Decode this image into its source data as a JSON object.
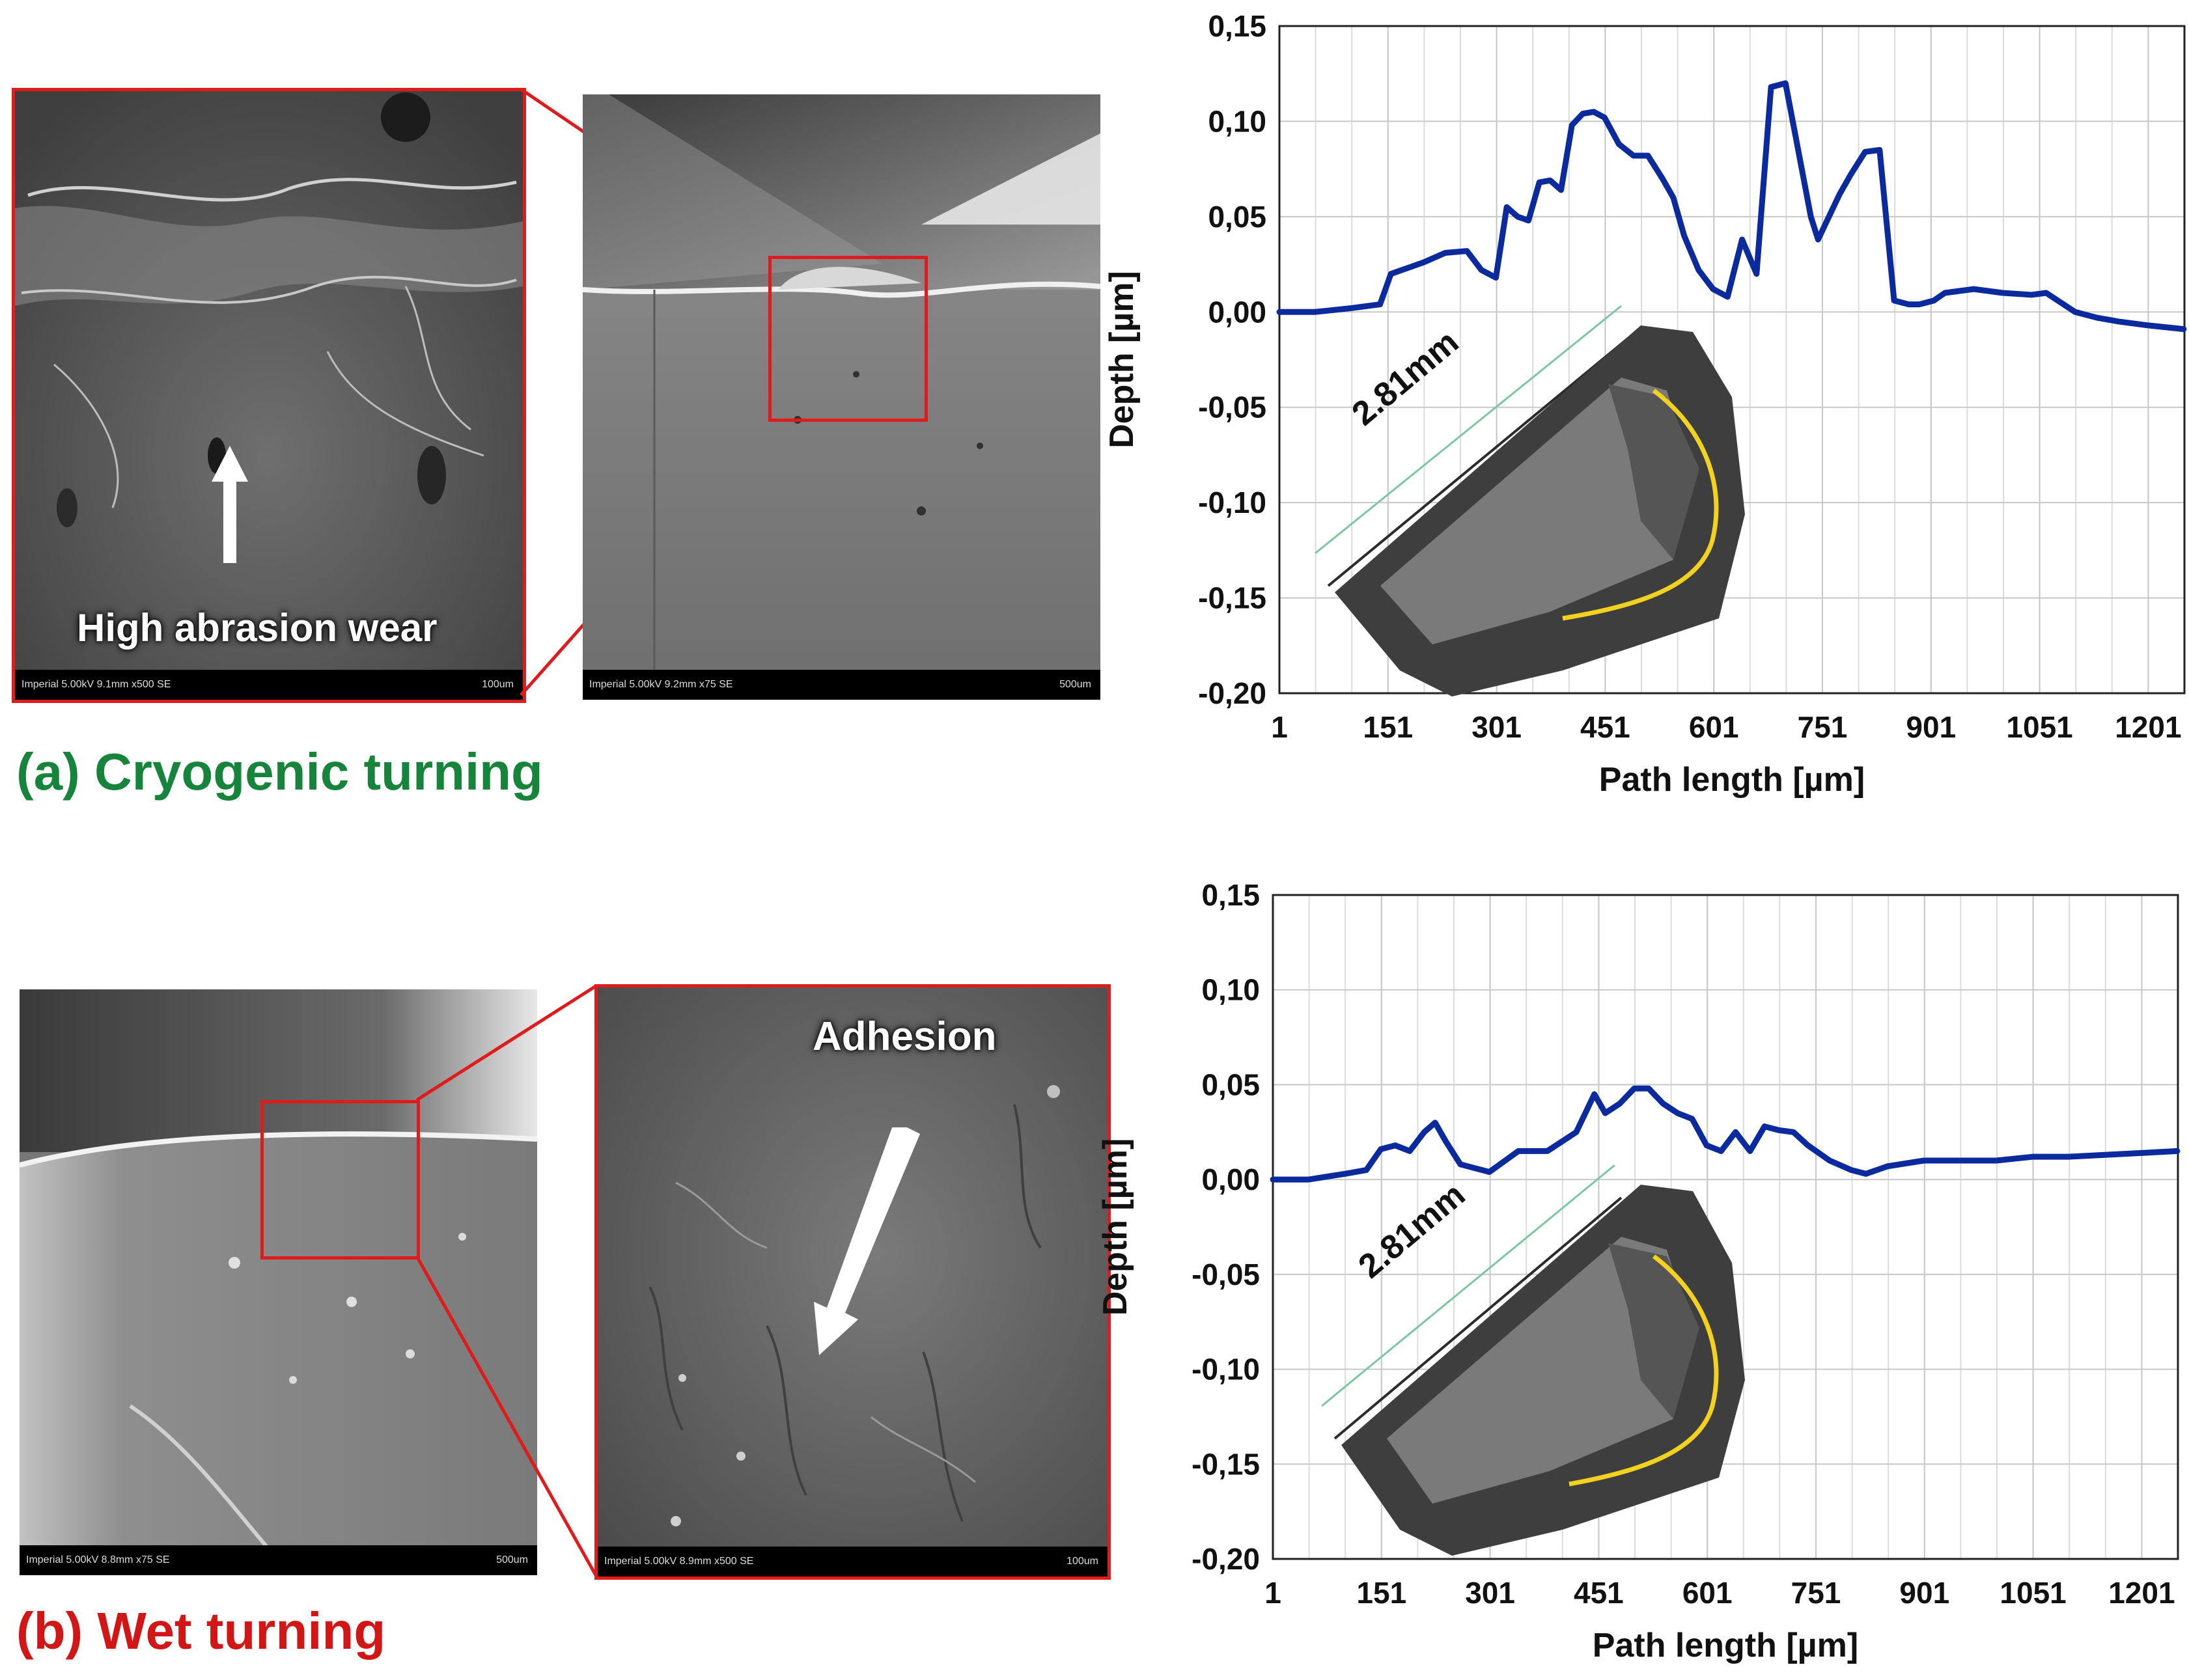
{
  "colors": {
    "series_line": "#0b2a9e",
    "highlight_box": "#e01b1b",
    "caption_a": "#16843a",
    "caption_b": "#d21515",
    "profile_curve": "#f2d21e"
  },
  "panel_a": {
    "caption": "(a) Cryogenic turning",
    "sem_left": {
      "annotation": "High abrasion wear",
      "scalebar_left": "Imperial 5.00kV 9.1mm x500 SE",
      "scalebar_right": "100um",
      "icon": "arrow-up-icon"
    },
    "sem_right": {
      "scalebar_left": "Imperial 5.00kV 9.2mm x75 SE",
      "scalebar_right": "500um"
    },
    "insert_label": "2.81mm",
    "chart_data": {
      "type": "line",
      "xlabel": "Path length [µm]",
      "ylabel": "Depth [µm]",
      "xlim": [
        1,
        1251
      ],
      "ylim": [
        -0.2,
        0.15
      ],
      "x_ticks": [
        "1",
        "151",
        "301",
        "451",
        "601",
        "751",
        "901",
        "1051",
        "1201"
      ],
      "y_ticks": [
        "0,15",
        "0,10",
        "0,05",
        "0,00",
        "-0,05",
        "-0,10",
        "-0,15",
        "-0,20"
      ],
      "grid": true,
      "series": [
        {
          "x": [
            1,
            50,
            100,
            140,
            155,
            170,
            200,
            230,
            260,
            280,
            300,
            315,
            330,
            345,
            360,
            375,
            390,
            405,
            420,
            435,
            450,
            470,
            490,
            510,
            530,
            545,
            560,
            580,
            600,
            620,
            640,
            660,
            680,
            700,
            715,
            725,
            735,
            745,
            760,
            775,
            790,
            810,
            830,
            850,
            870,
            885,
            895,
            905,
            920,
            960,
            1000,
            1040,
            1060,
            1080,
            1100,
            1130,
            1160,
            1200,
            1250
          ],
          "y": [
            0.0,
            0.0,
            0.002,
            0.004,
            0.02,
            0.022,
            0.026,
            0.031,
            0.032,
            0.022,
            0.018,
            0.055,
            0.05,
            0.048,
            0.068,
            0.069,
            0.064,
            0.098,
            0.104,
            0.105,
            0.102,
            0.088,
            0.082,
            0.082,
            0.07,
            0.06,
            0.04,
            0.022,
            0.012,
            0.008,
            0.038,
            0.02,
            0.118,
            0.12,
            0.09,
            0.07,
            0.05,
            0.038,
            0.05,
            0.062,
            0.072,
            0.084,
            0.085,
            0.006,
            0.004,
            0.004,
            0.005,
            0.006,
            0.01,
            0.012,
            0.01,
            0.009,
            0.01,
            0.005,
            0.0,
            -0.003,
            -0.005,
            -0.007,
            -0.009
          ]
        }
      ]
    }
  },
  "panel_b": {
    "caption": "(b) Wet turning",
    "sem_left": {
      "scalebar_left": "Imperial 5.00kV 8.8mm x75 SE",
      "scalebar_right": "500um"
    },
    "sem_right": {
      "annotation": "Adhesion",
      "scalebar_left": "Imperial 5.00kV 8.9mm x500 SE",
      "scalebar_right": "100um",
      "icon": "arrow-down-left-icon"
    },
    "insert_label": "2.81mm",
    "chart_data": {
      "type": "line",
      "xlabel": "Path length [µm]",
      "ylabel": "Depth [µm]",
      "xlim": [
        1,
        1251
      ],
      "ylim": [
        -0.2,
        0.15
      ],
      "x_ticks": [
        "1",
        "151",
        "301",
        "451",
        "601",
        "751",
        "901",
        "1051",
        "1201"
      ],
      "y_ticks": [
        "0,15",
        "0,10",
        "0,05",
        "0,00",
        "-0,05",
        "-0,10",
        "-0,15",
        "-0,20"
      ],
      "grid": true,
      "series": [
        {
          "x": [
            1,
            50,
            100,
            130,
            150,
            170,
            190,
            210,
            225,
            240,
            260,
            300,
            340,
            380,
            420,
            445,
            460,
            480,
            500,
            520,
            540,
            560,
            580,
            600,
            620,
            640,
            660,
            680,
            700,
            720,
            740,
            770,
            800,
            820,
            850,
            900,
            950,
            1000,
            1050,
            1100,
            1150,
            1200,
            1250
          ],
          "y": [
            0.0,
            0.0,
            0.003,
            0.005,
            0.016,
            0.018,
            0.015,
            0.025,
            0.03,
            0.02,
            0.008,
            0.004,
            0.015,
            0.015,
            0.025,
            0.045,
            0.035,
            0.04,
            0.048,
            0.048,
            0.04,
            0.035,
            0.032,
            0.018,
            0.015,
            0.025,
            0.015,
            0.028,
            0.026,
            0.025,
            0.018,
            0.01,
            0.005,
            0.003,
            0.007,
            0.01,
            0.01,
            0.01,
            0.012,
            0.012,
            0.013,
            0.014,
            0.015
          ]
        }
      ]
    }
  }
}
